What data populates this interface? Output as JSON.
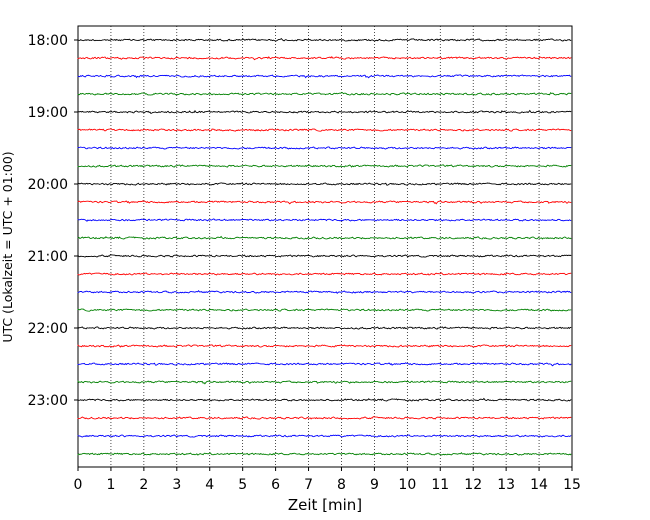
{
  "chart_data": {
    "type": "line",
    "title": "",
    "xlabel": "Zeit  [min]",
    "ylabel": "UTC (Lokalzeit = UTC + 01:00)",
    "xlim": [
      0,
      15
    ],
    "x_ticks": [
      "0",
      "1",
      "2",
      "3",
      "4",
      "5",
      "6",
      "7",
      "8",
      "9",
      "10",
      "11",
      "12",
      "13",
      "14",
      "15"
    ],
    "y_tick_labels": [
      "18:00",
      "19:00",
      "20:00",
      "21:00",
      "22:00",
      "23:00"
    ],
    "grid": "vertical dotted lines at each minute",
    "trace_interval_min": 15,
    "trace_start_times": [
      "18:00",
      "18:15",
      "18:30",
      "18:45",
      "19:00",
      "19:15",
      "19:30",
      "19:45",
      "20:00",
      "20:15",
      "20:30",
      "20:45",
      "21:00",
      "21:15",
      "21:30",
      "21:45",
      "22:00",
      "22:15",
      "22:30",
      "22:45",
      "23:00",
      "23:15",
      "23:30",
      "23:45"
    ],
    "trace_colors": [
      "#000000",
      "#ff0000",
      "#0000ff",
      "#008000"
    ],
    "series": [
      {
        "values": []
      }
    ]
  }
}
